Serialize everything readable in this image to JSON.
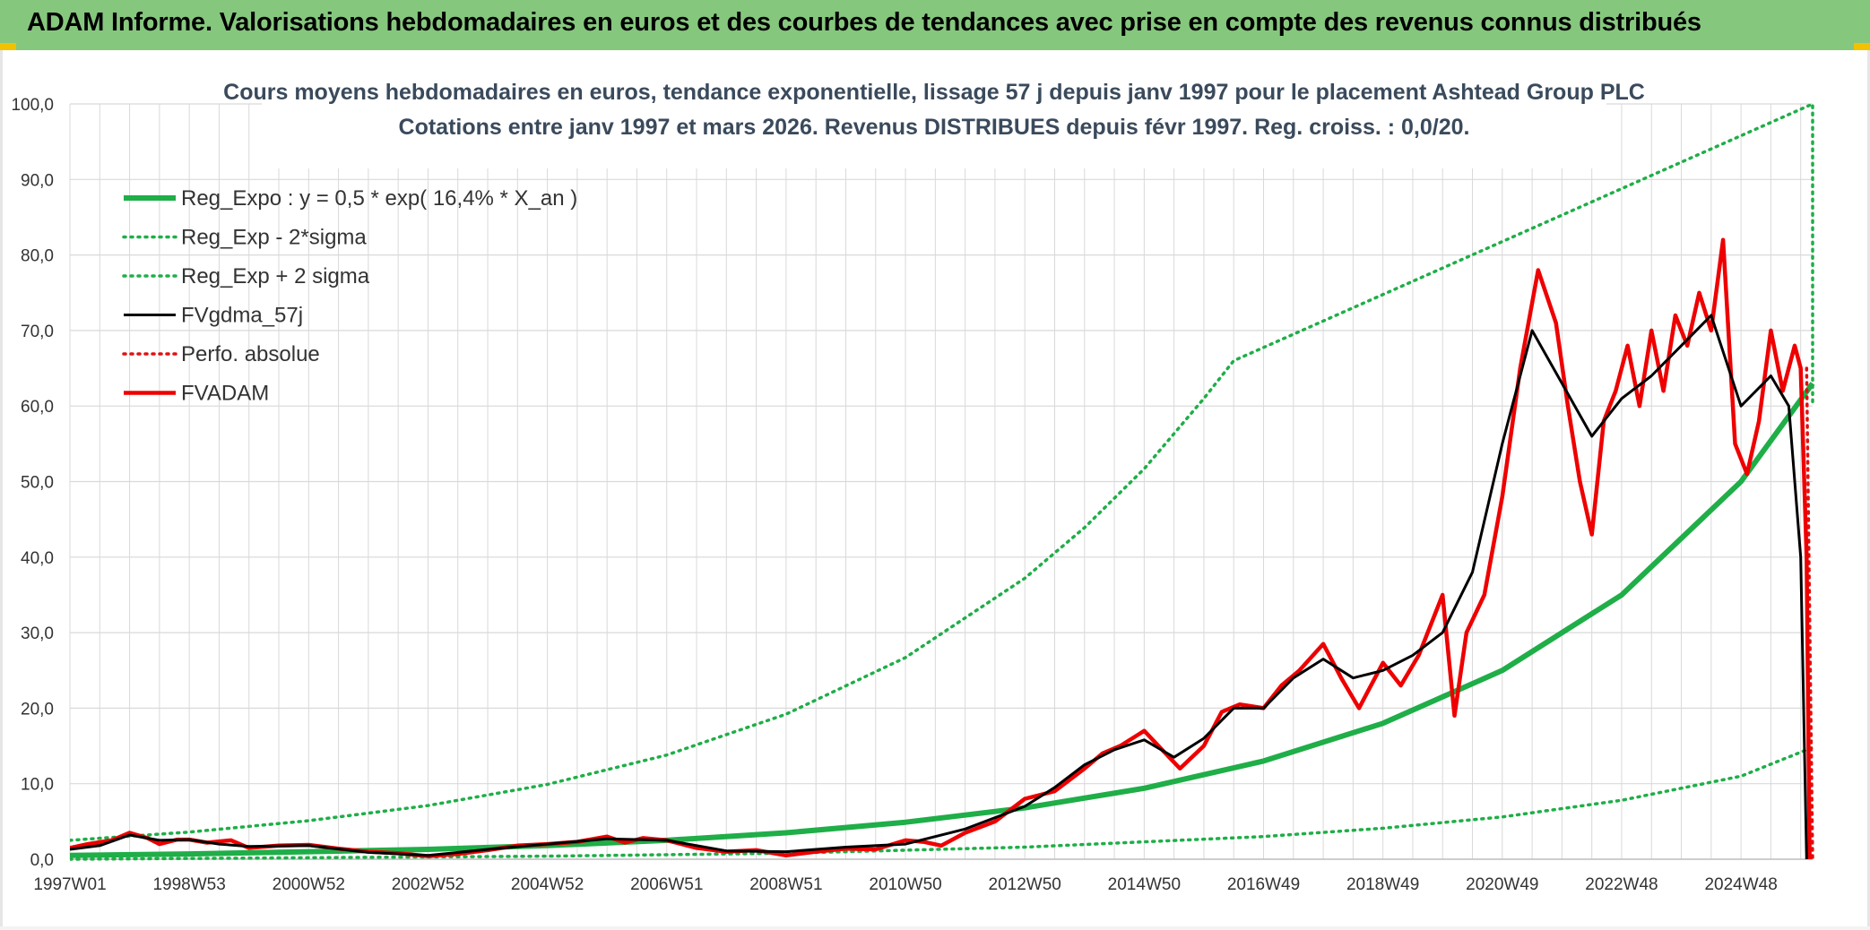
{
  "banner": {
    "title": "ADAM Informe. Valorisations hebdomadaires en euros et des courbes de tendances avec prise en compte des revenus connus distribués"
  },
  "colors": {
    "banner_bg": "#86c77e",
    "reg_expo": "#1fae48",
    "sigma": "#1fae48",
    "fvgdma": "#000000",
    "perfo": "#e01010",
    "fvadam": "#ee0000",
    "grid": "#d9d9d9"
  },
  "chart_data": {
    "type": "line",
    "title": [
      "Cours moyens hebdomadaires en euros, tendance exponentielle, lissage 57 j depuis janv 1997 pour le placement Ashtead Group PLC",
      "Cotations entre janv 1997 et mars 2026. Revenus DISTRIBUES depuis févr 1997. Reg. croiss. : 0,0/20."
    ],
    "xlabel": "",
    "ylabel": "",
    "x_range": [
      1997.0,
      2026.2
    ],
    "ylim": [
      0,
      100
    ],
    "grid": true,
    "legend_position": "top-left",
    "y_ticks": [
      "0,0",
      "10,0",
      "20,0",
      "30,0",
      "40,0",
      "50,0",
      "60,0",
      "70,0",
      "80,0",
      "90,0",
      "100,0"
    ],
    "x_ticks": [
      {
        "label": "1997W01",
        "x": 1997.0
      },
      {
        "label": "1998W53",
        "x": 1999.0
      },
      {
        "label": "2000W52",
        "x": 2001.0
      },
      {
        "label": "2002W52",
        "x": 2003.0
      },
      {
        "label": "2004W52",
        "x": 2005.0
      },
      {
        "label": "2006W51",
        "x": 2007.0
      },
      {
        "label": "2008W51",
        "x": 2009.0
      },
      {
        "label": "2010W50",
        "x": 2011.0
      },
      {
        "label": "2012W50",
        "x": 2013.0
      },
      {
        "label": "2014W50",
        "x": 2015.0
      },
      {
        "label": "2016W49",
        "x": 2017.0
      },
      {
        "label": "2018W49",
        "x": 2019.0
      },
      {
        "label": "2020W49",
        "x": 2021.0
      },
      {
        "label": "2022W48",
        "x": 2023.0
      },
      {
        "label": "2024W48",
        "x": 2025.0
      }
    ],
    "series": [
      {
        "name": "Reg_Expo : y = 0,5 * exp( 16,4% *  X_an )",
        "style": "solid-thick",
        "color": "#1fae48",
        "x": [
          1997.0,
          1999.0,
          2001.0,
          2003.0,
          2005.0,
          2007.0,
          2009.0,
          2011.0,
          2013.0,
          2015.0,
          2017.0,
          2019.0,
          2021.0,
          2023.0,
          2025.0,
          2026.2
        ],
        "y": [
          0.5,
          0.7,
          1.0,
          1.3,
          1.8,
          2.5,
          3.5,
          4.9,
          6.8,
          9.4,
          13.0,
          18.0,
          25.0,
          35.0,
          50.0,
          63.0
        ]
      },
      {
        "name": "Reg_Exp - 2*sigma",
        "style": "dotted",
        "color": "#1fae48",
        "x": [
          1997.0,
          2001.0,
          2005.0,
          2009.0,
          2013.0,
          2017.0,
          2019.0,
          2021.0,
          2023.0,
          2025.0,
          2026.2
        ],
        "y": [
          0.0,
          0.2,
          0.4,
          0.8,
          1.6,
          3.0,
          4.1,
          5.6,
          7.8,
          11.0,
          14.8
        ]
      },
      {
        "name": "Reg_Exp + 2 sigma",
        "style": "dotted",
        "color": "#1fae48",
        "x": [
          1997.0,
          1999.0,
          2001.0,
          2003.0,
          2005.0,
          2007.0,
          2009.0,
          2011.0,
          2013.0,
          2014.0,
          2015.0,
          2016.0,
          2016.5,
          2026.2,
          2026.2
        ],
        "y": [
          2.5,
          3.6,
          5.1,
          7.1,
          9.9,
          13.8,
          19.2,
          26.7,
          37.2,
          43.9,
          51.7,
          61.0,
          66.0,
          100.0,
          60.0
        ]
      },
      {
        "name": "FVgdma_57j",
        "style": "solid",
        "color": "#000000",
        "x": [
          1997.0,
          1997.5,
          1998.0,
          1998.5,
          1999.0,
          1999.5,
          2000.0,
          2001.0,
          2002.0,
          2003.0,
          2004.0,
          2005.0,
          2006.0,
          2007.0,
          2008.0,
          2009.0,
          2010.0,
          2011.0,
          2012.0,
          2013.0,
          2013.5,
          2014.0,
          2014.5,
          2015.0,
          2015.5,
          2016.0,
          2016.5,
          2017.0,
          2017.5,
          2018.0,
          2018.5,
          2019.0,
          2019.5,
          2020.0,
          2020.5,
          2021.0,
          2021.5,
          2022.0,
          2022.5,
          2023.0,
          2023.5,
          2024.0,
          2024.5,
          2025.0,
          2025.5,
          2025.8,
          2026.0,
          2026.1
        ],
        "y": [
          1.3,
          1.8,
          3.2,
          2.5,
          2.6,
          2.0,
          1.7,
          1.8,
          0.9,
          0.5,
          1.3,
          2.0,
          2.7,
          2.5,
          1.1,
          1.0,
          1.6,
          2.0,
          4.0,
          7.0,
          9.5,
          12.5,
          14.5,
          15.8,
          13.5,
          16.0,
          20.0,
          20.0,
          24.0,
          26.5,
          24.0,
          25.0,
          27.0,
          30.0,
          38.0,
          55.0,
          70.0,
          63.0,
          56.0,
          61.0,
          64.0,
          68.0,
          72.0,
          60.0,
          64.0,
          60.0,
          40.0,
          0.0
        ]
      },
      {
        "name": "Perfo. absolue",
        "style": "dotted",
        "color": "#e01010",
        "x": [
          2026.1,
          2026.2
        ],
        "y": [
          65.0,
          0.0
        ]
      },
      {
        "name": "FVADAM",
        "style": "solid-thick",
        "color": "#ee0000",
        "x": [
          1997.0,
          1997.3,
          1997.7,
          1998.0,
          1998.3,
          1998.5,
          1998.8,
          1999.0,
          1999.3,
          1999.7,
          2000.0,
          2000.5,
          2001.0,
          2001.5,
          2002.0,
          2002.5,
          2003.0,
          2003.5,
          2004.0,
          2004.5,
          2005.0,
          2005.5,
          2006.0,
          2006.3,
          2006.6,
          2007.0,
          2007.5,
          2008.0,
          2008.5,
          2009.0,
          2009.5,
          2010.0,
          2010.5,
          2011.0,
          2011.3,
          2011.6,
          2012.0,
          2012.5,
          2013.0,
          2013.5,
          2014.0,
          2014.3,
          2014.6,
          2015.0,
          2015.3,
          2015.6,
          2016.0,
          2016.3,
          2016.6,
          2017.0,
          2017.3,
          2017.6,
          2018.0,
          2018.3,
          2018.6,
          2019.0,
          2019.3,
          2019.6,
          2020.0,
          2020.2,
          2020.4,
          2020.7,
          2021.0,
          2021.3,
          2021.6,
          2021.9,
          2022.1,
          2022.3,
          2022.5,
          2022.7,
          2022.9,
          2023.1,
          2023.3,
          2023.5,
          2023.7,
          2023.9,
          2024.1,
          2024.3,
          2024.5,
          2024.7,
          2024.9,
          2025.1,
          2025.3,
          2025.5,
          2025.7,
          2025.9,
          2026.0,
          2026.1,
          2026.15
        ],
        "y": [
          1.5,
          2.0,
          2.5,
          3.5,
          2.8,
          2.0,
          2.6,
          2.6,
          2.2,
          2.5,
          1.5,
          1.8,
          1.9,
          1.4,
          1.0,
          0.8,
          0.4,
          0.7,
          1.2,
          1.8,
          2.0,
          2.3,
          3.0,
          2.2,
          2.8,
          2.5,
          1.5,
          1.0,
          1.2,
          0.5,
          1.0,
          1.4,
          1.3,
          2.5,
          2.3,
          1.8,
          3.5,
          5.0,
          8.0,
          9.0,
          12.0,
          14.0,
          15.0,
          17.0,
          14.5,
          12.0,
          15.0,
          19.5,
          20.5,
          20.0,
          23.0,
          25.0,
          28.5,
          24.0,
          20.0,
          26.0,
          23.0,
          27.0,
          35.0,
          19.0,
          30.0,
          35.0,
          48.0,
          65.0,
          78.0,
          71.0,
          60.0,
          50.0,
          43.0,
          58.0,
          62.0,
          68.0,
          60.0,
          70.0,
          62.0,
          72.0,
          68.0,
          75.0,
          70.0,
          82.0,
          55.0,
          51.0,
          58.0,
          70.0,
          62.0,
          68.0,
          65.0,
          40.0,
          0.0
        ]
      }
    ]
  }
}
